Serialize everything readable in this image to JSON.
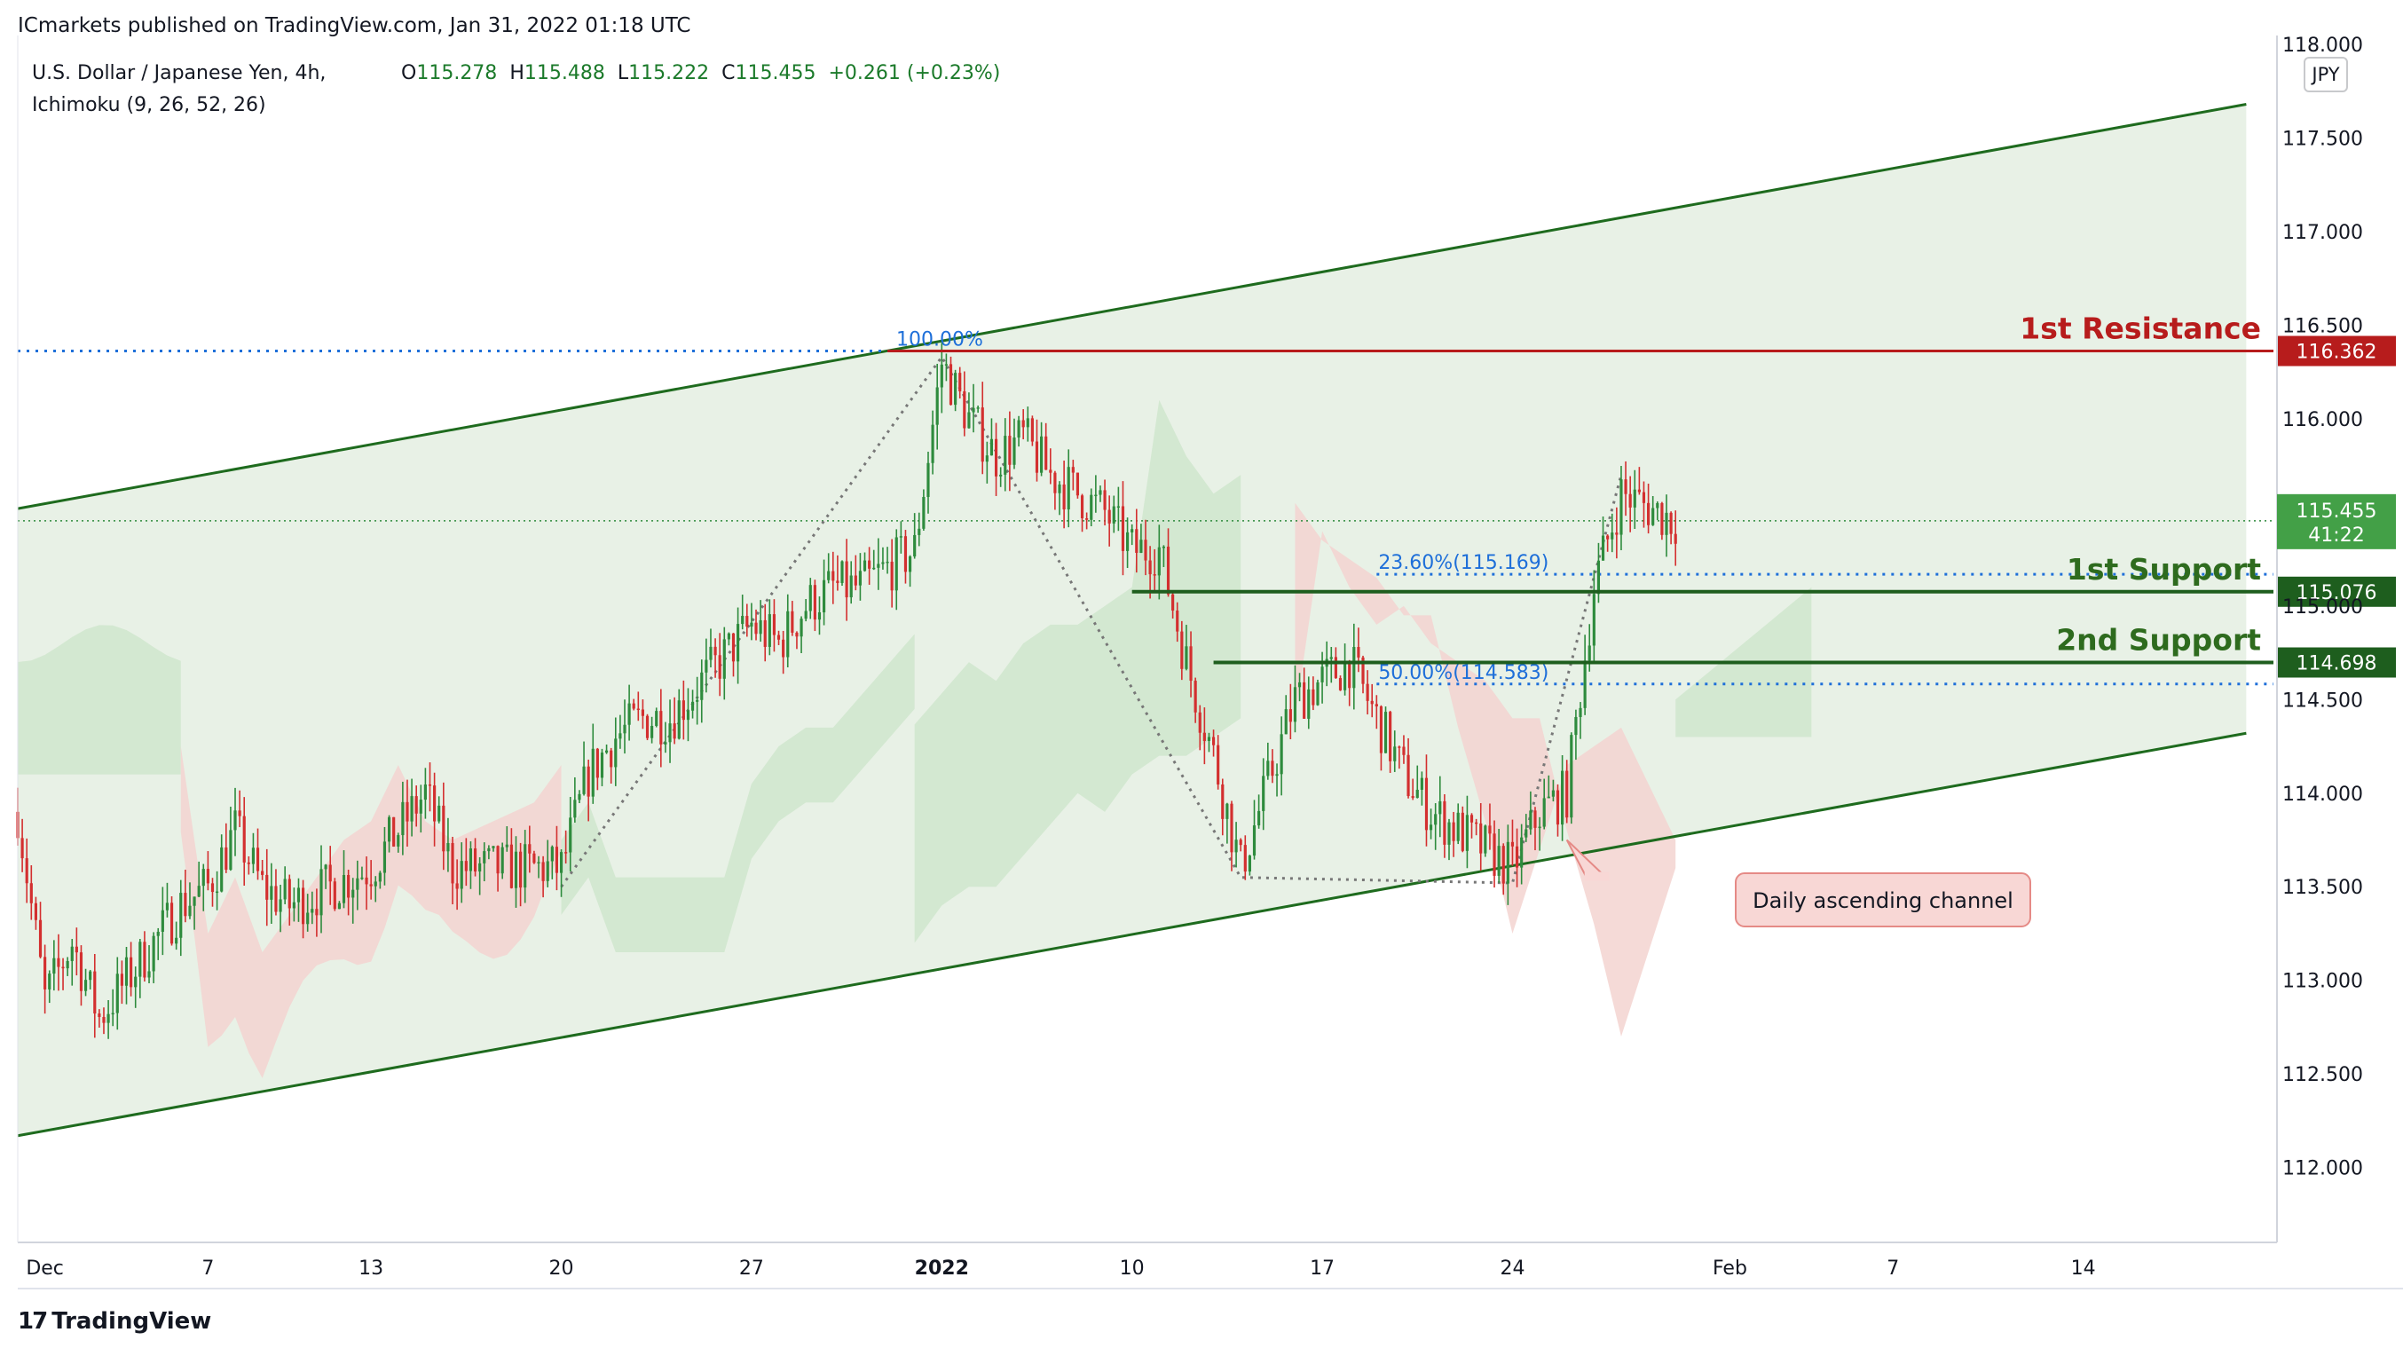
{
  "header": {
    "publisher": "ICmarkets published on TradingView.com, Jan 31, 2022 01:18 UTC",
    "symbol": "U.S. Dollar / Japanese Yen, 4h,",
    "indicator": "Ichimoku (9, 26, 52, 26)",
    "ohlc": {
      "o_label": "O",
      "o": "115.278",
      "h_label": "H",
      "h": "115.488",
      "l_label": "L",
      "l": "115.222",
      "c_label": "C",
      "c": "115.455",
      "change": "+0.261 (+0.23%)"
    }
  },
  "currency": "JPY",
  "branding": {
    "logo": "17",
    "name": "TradingView"
  },
  "colors": {
    "up": "#2e8b3d",
    "down": "#d32f2f",
    "channel": "#1e6b1e",
    "channel_fill": "#e8f1e6",
    "resistance": "#b71c1c",
    "support": "#1e5e1e",
    "fib": "#1e6fd9",
    "price_badge": "#43a047",
    "cloud_bull": "#cfe6cc",
    "cloud_bear": "#f3d3d0"
  },
  "chart_data": {
    "type": "candlestick",
    "timeframe": "4h",
    "ylim": [
      111.6,
      118.0
    ],
    "y_ticks": [
      "112.000",
      "112.500",
      "113.000",
      "113.500",
      "114.000",
      "114.500",
      "115.000",
      "115.500",
      "116.000",
      "116.500",
      "117.000",
      "117.500",
      "118.000"
    ],
    "x_ticks": [
      {
        "label": "Dec",
        "date": "2021-12-01",
        "bold": false
      },
      {
        "label": "7",
        "date": "2021-12-07",
        "bold": false
      },
      {
        "label": "13",
        "date": "2021-12-13",
        "bold": false
      },
      {
        "label": "20",
        "date": "2021-12-20",
        "bold": false
      },
      {
        "label": "27",
        "date": "2021-12-27",
        "bold": false
      },
      {
        "label": "2022",
        "date": "2022-01-03",
        "bold": true
      },
      {
        "label": "10",
        "date": "2022-01-10",
        "bold": false
      },
      {
        "label": "17",
        "date": "2022-01-17",
        "bold": false
      },
      {
        "label": "24",
        "date": "2022-01-24",
        "bold": false
      },
      {
        "label": "Feb",
        "date": "2022-02-01",
        "bold": false
      },
      {
        "label": "7",
        "date": "2022-02-07",
        "bold": false
      },
      {
        "label": "14",
        "date": "2022-02-14",
        "bold": false
      }
    ],
    "x_range": [
      "2021-11-30",
      "2022-02-21"
    ],
    "price_path": [
      [
        "2021-11-30",
        113.9
      ],
      [
        "2021-12-01",
        112.9
      ],
      [
        "2021-12-02",
        113.2
      ],
      [
        "2021-12-03",
        112.8
      ],
      [
        "2021-12-06",
        113.4
      ],
      [
        "2021-12-07",
        113.5
      ],
      [
        "2021-12-08",
        113.8
      ],
      [
        "2021-12-09",
        113.5
      ],
      [
        "2021-12-10",
        113.4
      ],
      [
        "2021-12-13",
        113.6
      ],
      [
        "2021-12-14",
        113.8
      ],
      [
        "2021-12-15",
        114.0
      ],
      [
        "2021-12-16",
        113.6
      ],
      [
        "2021-12-17",
        113.6
      ],
      [
        "2021-12-20",
        113.6
      ],
      [
        "2021-12-21",
        114.1
      ],
      [
        "2021-12-22",
        114.3
      ],
      [
        "2021-12-23",
        114.4
      ],
      [
        "2021-12-24",
        114.4
      ],
      [
        "2021-12-27",
        114.9
      ],
      [
        "2021-12-28",
        114.8
      ],
      [
        "2021-12-29",
        115.0
      ],
      [
        "2021-12-30",
        115.1
      ],
      [
        "2021-12-31",
        115.1
      ],
      [
        "2022-01-02",
        115.3
      ],
      [
        "2022-01-03",
        116.3
      ],
      [
        "2022-01-04",
        116.0
      ],
      [
        "2022-01-05",
        115.8
      ],
      [
        "2022-01-06",
        115.9
      ],
      [
        "2022-01-07",
        115.7
      ],
      [
        "2022-01-09",
        115.5
      ],
      [
        "2022-01-10",
        115.3
      ],
      [
        "2022-01-11",
        115.3
      ],
      [
        "2022-01-12",
        114.7
      ],
      [
        "2022-01-13",
        114.2
      ],
      [
        "2022-01-14",
        113.6
      ],
      [
        "2022-01-16",
        114.5
      ],
      [
        "2022-01-17",
        114.6
      ],
      [
        "2022-01-18",
        114.7
      ],
      [
        "2022-01-19",
        114.4
      ],
      [
        "2022-01-20",
        114.1
      ],
      [
        "2022-01-21",
        113.9
      ],
      [
        "2022-01-23",
        113.7
      ],
      [
        "2022-01-24",
        113.6
      ],
      [
        "2022-01-25",
        113.9
      ],
      [
        "2022-01-26",
        114.0
      ],
      [
        "2022-01-27",
        115.1
      ],
      [
        "2022-01-28",
        115.6
      ],
      [
        "2022-01-30",
        115.455
      ]
    ],
    "channel": {
      "upper": {
        "from": [
          "2021-11-30",
          115.52
        ],
        "to": [
          "2022-02-20",
          117.68
        ]
      },
      "lower": {
        "from": [
          "2021-11-30",
          112.17
        ],
        "to": [
          "2022-02-20",
          114.32
        ]
      }
    },
    "horizontal_levels": [
      {
        "label": "1st Resistance",
        "price": 116.362,
        "price_label": "116.362",
        "start": "2022-01-01"
      },
      {
        "label": "1st Support",
        "price": 115.076,
        "price_label": "115.076",
        "start": "2022-01-10"
      },
      {
        "label": "2nd Support",
        "price": 114.698,
        "price_label": "114.698",
        "start": "2022-01-13"
      }
    ],
    "fibonacci": [
      {
        "label": "100.00%",
        "price": 116.362
      },
      {
        "label": "23.60%(115.169)",
        "price": 115.169
      },
      {
        "label": "50.00%(114.583)",
        "price": 114.583
      }
    ],
    "high_dotted_level": 116.362,
    "last_price": {
      "value": "115.455",
      "countdown": "41:22",
      "price": 115.455
    },
    "annotation": {
      "text": "Daily ascending channel",
      "points_to": [
        "2022-01-26",
        113.75
      ]
    },
    "zigzag": [
      [
        "2021-12-20",
        113.5
      ],
      [
        "2022-01-03",
        116.33
      ],
      [
        "2022-01-14",
        113.55
      ],
      [
        "2022-01-24",
        113.52
      ],
      [
        "2022-01-28",
        115.7
      ]
    ]
  }
}
